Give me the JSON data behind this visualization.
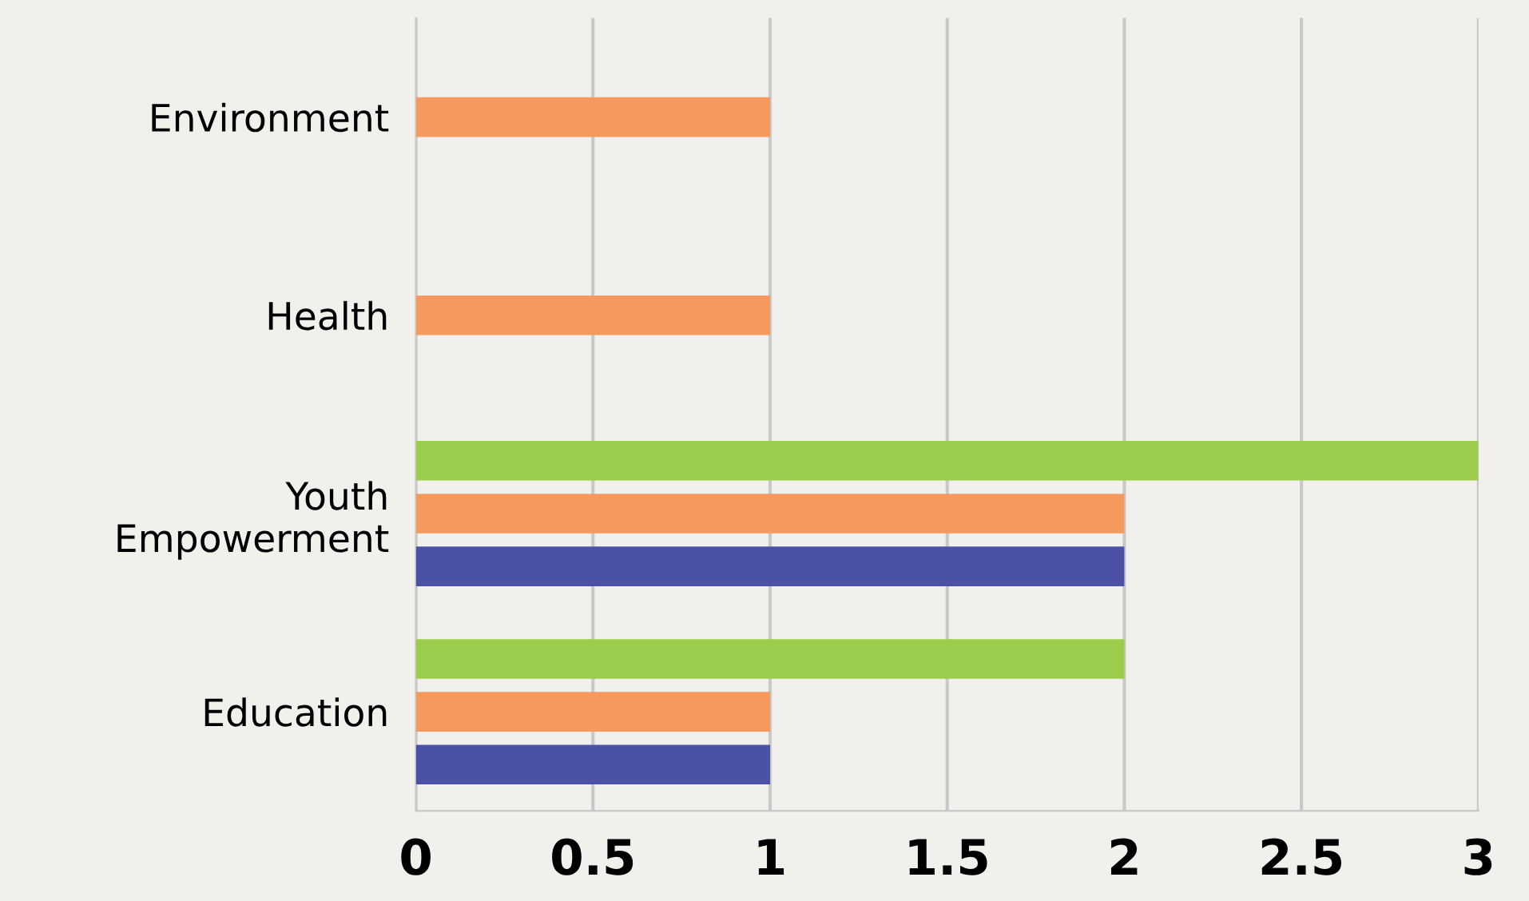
{
  "chart_data": {
    "type": "bar",
    "orientation": "horizontal",
    "categories": [
      "Environment",
      "Health",
      "Youth\nEmpowerment",
      "Education"
    ],
    "series": [
      {
        "color": "#9ccc4c",
        "values": [
          null,
          null,
          3,
          2
        ]
      },
      {
        "color": "#f59a5e",
        "values": [
          1,
          1,
          2,
          1
        ]
      },
      {
        "color": "#4b52a6",
        "values": [
          null,
          null,
          2,
          1
        ]
      }
    ],
    "xlim": [
      0,
      3
    ],
    "xticks": [
      0,
      0.5,
      1,
      1.5,
      2,
      2.5,
      3
    ],
    "grid": "x",
    "legend": false
  }
}
